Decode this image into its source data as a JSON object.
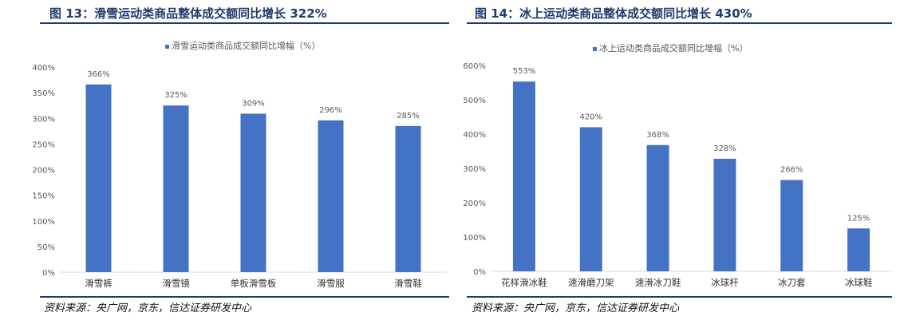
{
  "colors": {
    "bar": "#4472c4",
    "title": "#1f3a6e",
    "axis": "#595959",
    "gridline": "#d9d9d9"
  },
  "left": {
    "title": "图 13：滑雪运动类商品整体成交额同比增长 322%",
    "source": "资料来源：央广网，京东，信达证券研发中心"
  },
  "right": {
    "title": "图 14：冰上运动类商品整体成交额同比增长 430%",
    "source": "资料来源：央广网，京东，信达证券研发中心"
  },
  "chart_data": [
    {
      "type": "bar",
      "legend": "滑雪运动类商品成交额同比增幅（%）",
      "legend_position": "top",
      "categories": [
        "滑雪裤",
        "滑雪镜",
        "单板滑雪板",
        "滑雪服",
        "滑雪鞋"
      ],
      "values": [
        366,
        325,
        309,
        296,
        285
      ],
      "data_labels": [
        "366%",
        "325%",
        "309%",
        "296%",
        "285%"
      ],
      "ylim": [
        0,
        400
      ],
      "yticks": [
        0,
        50,
        100,
        150,
        200,
        250,
        300,
        350,
        400
      ],
      "ytick_labels": [
        "0%",
        "50%",
        "100%",
        "150%",
        "200%",
        "250%",
        "300%",
        "350%",
        "400%"
      ],
      "grid": false
    },
    {
      "type": "bar",
      "legend": "冰上运动类商品成交额同比增幅（%）",
      "legend_position": "top",
      "categories": [
        "花样滑冰鞋",
        "速滑磨刀架",
        "速滑冰刀鞋",
        "冰球杆",
        "冰刀套",
        "冰球鞋"
      ],
      "values": [
        553,
        420,
        368,
        328,
        266,
        125
      ],
      "data_labels": [
        "553%",
        "420%",
        "368%",
        "328%",
        "266%",
        "125%"
      ],
      "ylim": [
        0,
        600
      ],
      "yticks": [
        0,
        100,
        200,
        300,
        400,
        500,
        600
      ],
      "ytick_labels": [
        "0%",
        "100%",
        "200%",
        "300%",
        "400%",
        "500%",
        "600%"
      ],
      "grid": false
    }
  ]
}
